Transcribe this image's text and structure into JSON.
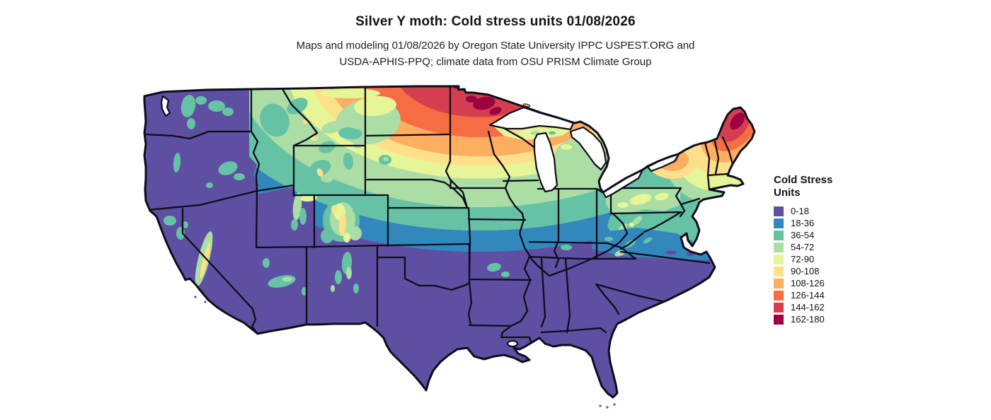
{
  "header": {
    "title": "Silver Y moth: Cold stress units 01/08/2026",
    "subtitle_line1": "Maps and modeling 01/08/2026 by Oregon State University IPPC USPEST.ORG and",
    "subtitle_line2": "USDA-APHIS-PPQ; climate data from OSU PRISM Climate Group"
  },
  "legend": {
    "title_line1": "Cold Stress",
    "title_line2": "Units",
    "items": [
      {
        "label": "0-18",
        "color": "#5E4FA2"
      },
      {
        "label": "18-36",
        "color": "#3288BD"
      },
      {
        "label": "36-54",
        "color": "#66C2A5"
      },
      {
        "label": "54-72",
        "color": "#ABDDA4"
      },
      {
        "label": "72-90",
        "color": "#E6F598"
      },
      {
        "label": "90-108",
        "color": "#FEE08B"
      },
      {
        "label": "108-126",
        "color": "#FDAE61"
      },
      {
        "label": "126-144",
        "color": "#F46D43"
      },
      {
        "label": "144-162",
        "color": "#D53E4F"
      },
      {
        "label": "162-180",
        "color": "#9E0142"
      }
    ]
  },
  "map": {
    "region": "Contiguous United States",
    "state_border_color": "#0d0d1a",
    "water_color": "#ffffff",
    "lowest_class_color": "#5E4FA2",
    "hotspots": [
      "northern Minnesota",
      "Maine"
    ]
  }
}
